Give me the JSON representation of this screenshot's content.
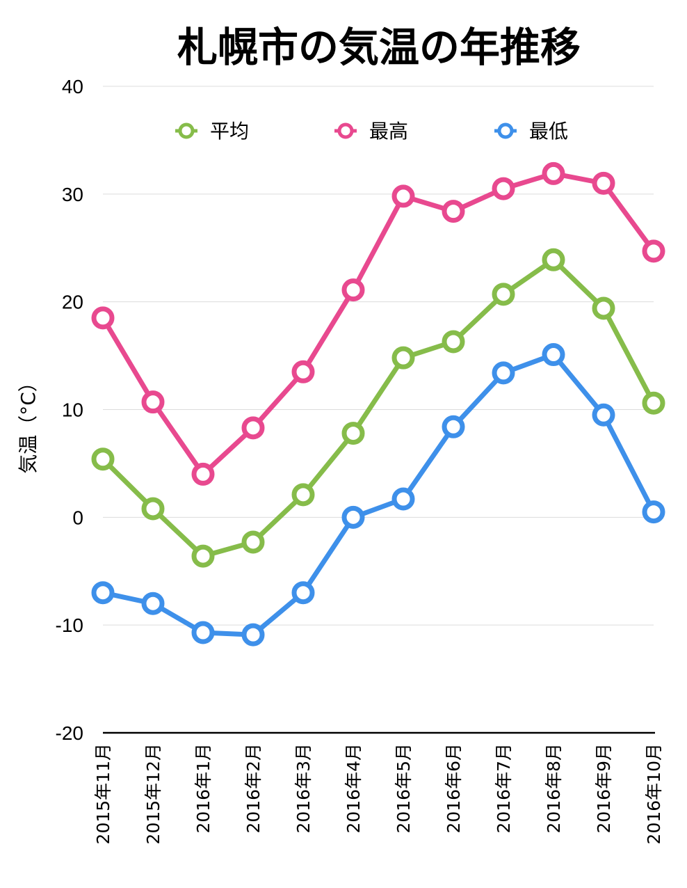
{
  "chart_data": {
    "type": "line",
    "title": "札幌市の気温の年推移",
    "ylabel": "気温（°C）",
    "xlabel": "",
    "ylim": [
      -20,
      40
    ],
    "yticks": [
      "40",
      "30",
      "20",
      "10",
      "0",
      "-10",
      "-20"
    ],
    "ytick_values": [
      40,
      30,
      20,
      10,
      0,
      -10,
      -20
    ],
    "grid": true,
    "legend_position": "top",
    "categories": [
      "2015年11月",
      "2015年12月",
      "2016年1月",
      "2016年2月",
      "2016年3月",
      "2016年4月",
      "2016年5月",
      "2016年6月",
      "2016年7月",
      "2016年8月",
      "2016年9月",
      "2016年10月"
    ],
    "series": [
      {
        "name": "平均",
        "color": "#86bc4a",
        "values": [
          5.4,
          0.8,
          -3.6,
          -2.3,
          2.1,
          7.8,
          14.8,
          16.3,
          20.7,
          23.9,
          19.4,
          10.6
        ]
      },
      {
        "name": "最高",
        "color": "#e8498f",
        "values": [
          18.5,
          10.7,
          4.0,
          8.3,
          13.5,
          21.1,
          29.8,
          28.4,
          30.5,
          31.9,
          31.0,
          24.7
        ]
      },
      {
        "name": "最低",
        "color": "#3e90ea",
        "values": [
          -7.0,
          -8.0,
          -10.7,
          -10.9,
          -7.0,
          0.0,
          1.7,
          8.4,
          13.4,
          15.1,
          9.5,
          0.5
        ]
      }
    ]
  }
}
